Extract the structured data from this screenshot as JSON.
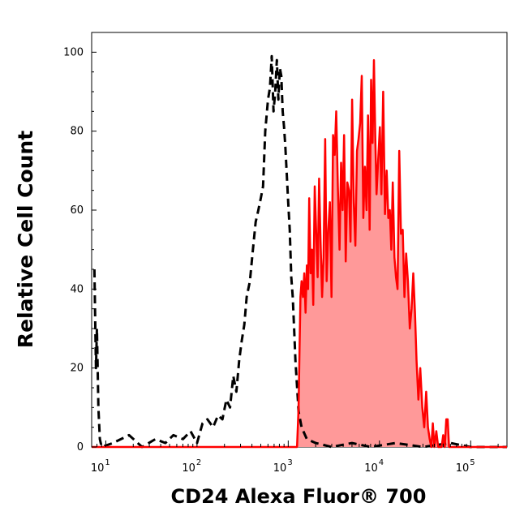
{
  "chart_data": {
    "type": "area",
    "xlabel": "CD24 Alexa Fluor® 700",
    "ylabel": "Relative Cell Count",
    "x_scale": "log",
    "xlim": [
      7,
      250000
    ],
    "ylim": [
      0,
      105
    ],
    "x_ticks": [
      {
        "value": 10,
        "base": "10",
        "exp": "1"
      },
      {
        "value": 100,
        "base": "10",
        "exp": "2"
      },
      {
        "value": 1000,
        "base": "10",
        "exp": "3"
      },
      {
        "value": 10000,
        "base": "10",
        "exp": "4"
      },
      {
        "value": 100000,
        "base": "10",
        "exp": "5"
      }
    ],
    "y_ticks": [
      0,
      20,
      40,
      60,
      80,
      100
    ],
    "grid": false,
    "series": [
      {
        "style": "dashed",
        "color": "#000000",
        "filled": false,
        "x": [
          7.5,
          7.8,
          8.0,
          8.3,
          8.6,
          9,
          12,
          18,
          25,
          35,
          45,
          55,
          70,
          85,
          100,
          115,
          130,
          150,
          170,
          190,
          210,
          230,
          250,
          270,
          290,
          310,
          330,
          350,
          380,
          410,
          440,
          470,
          500,
          530,
          560,
          600,
          630,
          660,
          690,
          720,
          750,
          780,
          810,
          840,
          870,
          900,
          930,
          960,
          1000,
          1040,
          1080,
          1120,
          1160,
          1200,
          1300,
          1400,
          1600,
          2000,
          3000,
          5000,
          8000,
          15000,
          30000,
          60000,
          100000,
          250000
        ],
        "y": [
          45,
          20,
          30,
          10,
          2,
          0,
          1,
          3,
          0,
          2,
          1,
          3,
          2,
          4,
          1,
          6,
          7,
          5,
          8,
          7,
          12,
          10,
          18,
          14,
          22,
          27,
          31,
          38,
          42,
          50,
          57,
          60,
          63,
          66,
          80,
          88,
          91,
          99,
          85,
          90,
          98,
          88,
          96,
          94,
          85,
          81,
          76,
          70,
          62,
          55,
          43,
          38,
          30,
          22,
          9,
          5,
          2,
          1,
          0,
          1,
          0,
          1,
          0,
          1,
          0,
          0
        ]
      },
      {
        "style": "solid",
        "color": "#ff0000",
        "fill": "#ff9999",
        "filled": true,
        "x": [
          7,
          1000,
          1250,
          1300,
          1330,
          1360,
          1400,
          1450,
          1500,
          1550,
          1600,
          1650,
          1700,
          1760,
          1820,
          1880,
          1950,
          2020,
          2100,
          2180,
          2260,
          2350,
          2440,
          2540,
          2640,
          2750,
          2860,
          2980,
          3100,
          3230,
          3360,
          3500,
          3650,
          3800,
          3950,
          4100,
          4270,
          4450,
          4630,
          4820,
          5020,
          5230,
          5450,
          5670,
          5900,
          6150,
          6400,
          6660,
          6930,
          7220,
          7500,
          7800,
          8100,
          8400,
          8700,
          9000,
          9300,
          9700,
          10100,
          10500,
          11000,
          11500,
          12000,
          12500,
          13000,
          13500,
          14000,
          14600,
          15200,
          15800,
          16500,
          17200,
          18000,
          18800,
          19600,
          20500,
          21500,
          22500,
          23500,
          24500,
          25500,
          26700,
          28000,
          29500,
          31000,
          32500,
          34000,
          35500,
          37000,
          38500,
          40000,
          42000,
          44000,
          46000,
          48000,
          50000,
          52000,
          54000,
          56000,
          58000,
          60000,
          62000,
          64000,
          66000,
          250000
        ],
        "y": [
          0,
          0,
          0,
          10,
          25,
          38,
          42,
          38,
          44,
          34,
          46,
          40,
          63,
          44,
          50,
          36,
          66,
          55,
          43,
          68,
          52,
          38,
          48,
          78,
          42,
          55,
          62,
          38,
          79,
          74,
          85,
          66,
          50,
          72,
          60,
          79,
          47,
          67,
          65,
          52,
          88,
          62,
          51,
          75,
          78,
          82,
          94,
          58,
          71,
          60,
          84,
          55,
          93,
          77,
          98,
          79,
          64,
          73,
          81,
          64,
          90,
          59,
          70,
          58,
          60,
          50,
          67,
          48,
          43,
          40,
          75,
          54,
          55,
          38,
          49,
          42,
          30,
          35,
          44,
          34,
          22,
          12,
          20,
          10,
          5,
          14,
          5,
          2,
          0,
          6,
          0,
          4,
          0,
          0,
          0,
          3,
          0,
          7,
          7,
          0,
          0,
          0,
          0,
          0,
          0
        ]
      }
    ]
  }
}
